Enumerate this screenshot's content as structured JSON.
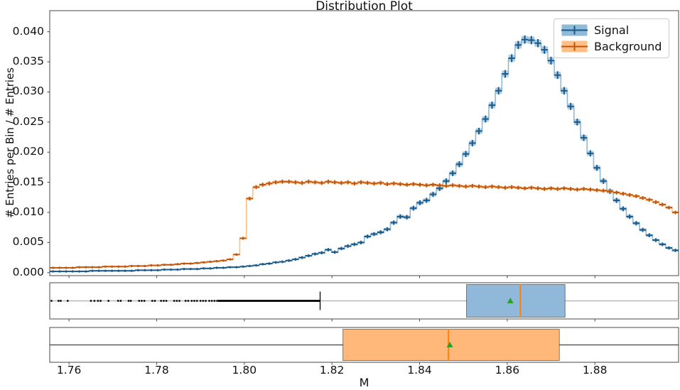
{
  "title": "Distribution Plot",
  "axes": {
    "x_label": "M",
    "y_label": "# Entries per Bin / # Entries"
  },
  "legend": {
    "items": [
      {
        "label": "Signal"
      },
      {
        "label": "Background"
      }
    ]
  },
  "chart_data": [
    {
      "type": "histogram",
      "name": "main-distribution",
      "title": "Distribution Plot",
      "xlabel": "M",
      "ylabel": "# Entries per Bin / # Entries",
      "xlim": [
        1.7556,
        1.8991
      ],
      "ylim": [
        -0.0005,
        0.0435
      ],
      "grid": false,
      "legend_position": "upper right",
      "x_ticks": [
        {
          "value": 1.76,
          "label": "1.76"
        },
        {
          "value": 1.78,
          "label": "1.78"
        },
        {
          "value": 1.8,
          "label": "1.80"
        },
        {
          "value": 1.82,
          "label": "1.82"
        },
        {
          "value": 1.84,
          "label": "1.84"
        },
        {
          "value": 1.86,
          "label": "1.86"
        },
        {
          "value": 1.88,
          "label": "1.88"
        }
      ],
      "y_ticks": [
        {
          "value": 0.0,
          "label": "0.000"
        },
        {
          "value": 0.005,
          "label": "0.005"
        },
        {
          "value": 0.01,
          "label": "0.010"
        },
        {
          "value": 0.015,
          "label": "0.015"
        },
        {
          "value": 0.02,
          "label": "0.020"
        },
        {
          "value": 0.025,
          "label": "0.025"
        },
        {
          "value": 0.03,
          "label": "0.030"
        },
        {
          "value": 0.035,
          "label": "0.035"
        },
        {
          "value": 0.04,
          "label": "0.040"
        }
      ],
      "bin_start": 1.7556,
      "bin_width": 0.0014953,
      "values_unit": 0.0001,
      "series": [
        {
          "name": "Signal",
          "color": "#1f77b4",
          "line_color": "#8fbbd9",
          "band_color": "rgba(31,119,180,0.38)",
          "marker_color": "#1b5a88",
          "yerr_coeff": 0.003,
          "values": [
            2,
            2,
            2,
            2,
            2,
            2,
            3,
            3,
            3,
            3,
            3,
            3,
            3,
            4,
            4,
            4,
            4,
            5,
            5,
            5,
            6,
            6,
            6,
            7,
            7,
            8,
            8,
            9,
            9,
            10,
            11,
            12,
            14,
            15,
            17,
            18,
            20,
            22,
            25,
            28,
            31,
            33,
            38,
            34,
            40,
            44,
            47,
            50,
            60,
            64,
            67,
            72,
            83,
            93,
            92,
            107,
            116,
            120,
            130,
            140,
            152,
            165,
            180,
            197,
            215,
            235,
            255,
            278,
            302,
            330,
            356,
            378,
            387,
            386,
            381,
            370,
            352,
            328,
            302,
            276,
            250,
            224,
            198,
            174,
            152,
            135,
            120,
            106,
            93,
            82,
            71,
            62,
            54,
            47,
            41,
            37
          ]
        },
        {
          "name": "Background",
          "color": "#ff7f0e",
          "line_color": "#ffbf86",
          "band_color": "rgba(255,127,14,0.38)",
          "marker_color": "#c0560b",
          "yerr_coeff": 0.002,
          "values": [
            8,
            8,
            8,
            8,
            9,
            9,
            9,
            9,
            10,
            10,
            10,
            10,
            11,
            11,
            11,
            12,
            12,
            13,
            13,
            14,
            15,
            15,
            16,
            17,
            18,
            19,
            20,
            22,
            30,
            57,
            123,
            142,
            146,
            148,
            150,
            151,
            151,
            150,
            149,
            151,
            150,
            149,
            151,
            150,
            149,
            150,
            148,
            150,
            149,
            148,
            149,
            147,
            148,
            147,
            146,
            147,
            146,
            145,
            146,
            145,
            144,
            145,
            144,
            143,
            144,
            143,
            142,
            143,
            142,
            141,
            142,
            141,
            140,
            141,
            140,
            139,
            140,
            139,
            140,
            139,
            138,
            139,
            138,
            137,
            136,
            135,
            133,
            131,
            129,
            127,
            124,
            121,
            117,
            113,
            108,
            100
          ]
        }
      ]
    },
    {
      "type": "box",
      "name": "signal-boxplot",
      "series": "Signal",
      "orientation": "horizontal",
      "whisker_low": 1.8173,
      "q1": 1.8507,
      "median": 1.863,
      "q3": 1.8732,
      "whisker_high": 1.8991,
      "mean": 1.8607,
      "fliers": [
        1.756,
        1.7576,
        1.7581,
        1.7597,
        1.765,
        1.7658,
        1.7666,
        1.7672,
        1.769,
        1.7712,
        1.7718,
        1.7736,
        1.7741,
        1.776,
        1.7766,
        1.7772,
        1.779,
        1.7796,
        1.781,
        1.7816,
        1.7822,
        1.784,
        1.7846,
        1.7852,
        1.7866,
        1.7872,
        1.788,
        1.7886,
        1.7892,
        1.79,
        1.7906,
        1.7912,
        1.792,
        1.7926,
        1.7932,
        1.7938
      ],
      "fliers_dense_range": [
        1.794,
        1.8173
      ],
      "box_fill": "#8FB8D9",
      "median_color": "#ff7f0e",
      "mean_color": "#2ca02c",
      "whisker_color": "#b8b8b8",
      "flier_color": "#000000"
    },
    {
      "type": "box",
      "name": "background-boxplot",
      "series": "Background",
      "orientation": "horizontal",
      "whisker_low": 1.7556,
      "q1": 1.8225,
      "median": 1.8466,
      "q3": 1.8719,
      "whisker_high": 1.8991,
      "mean": 1.8469,
      "fliers": [],
      "box_fill": "#FFB87A",
      "median_color": "#ff7f0e",
      "mean_color": "#2ca02c",
      "whisker_color": "#5a5a5a",
      "flier_color": "#000000"
    }
  ]
}
